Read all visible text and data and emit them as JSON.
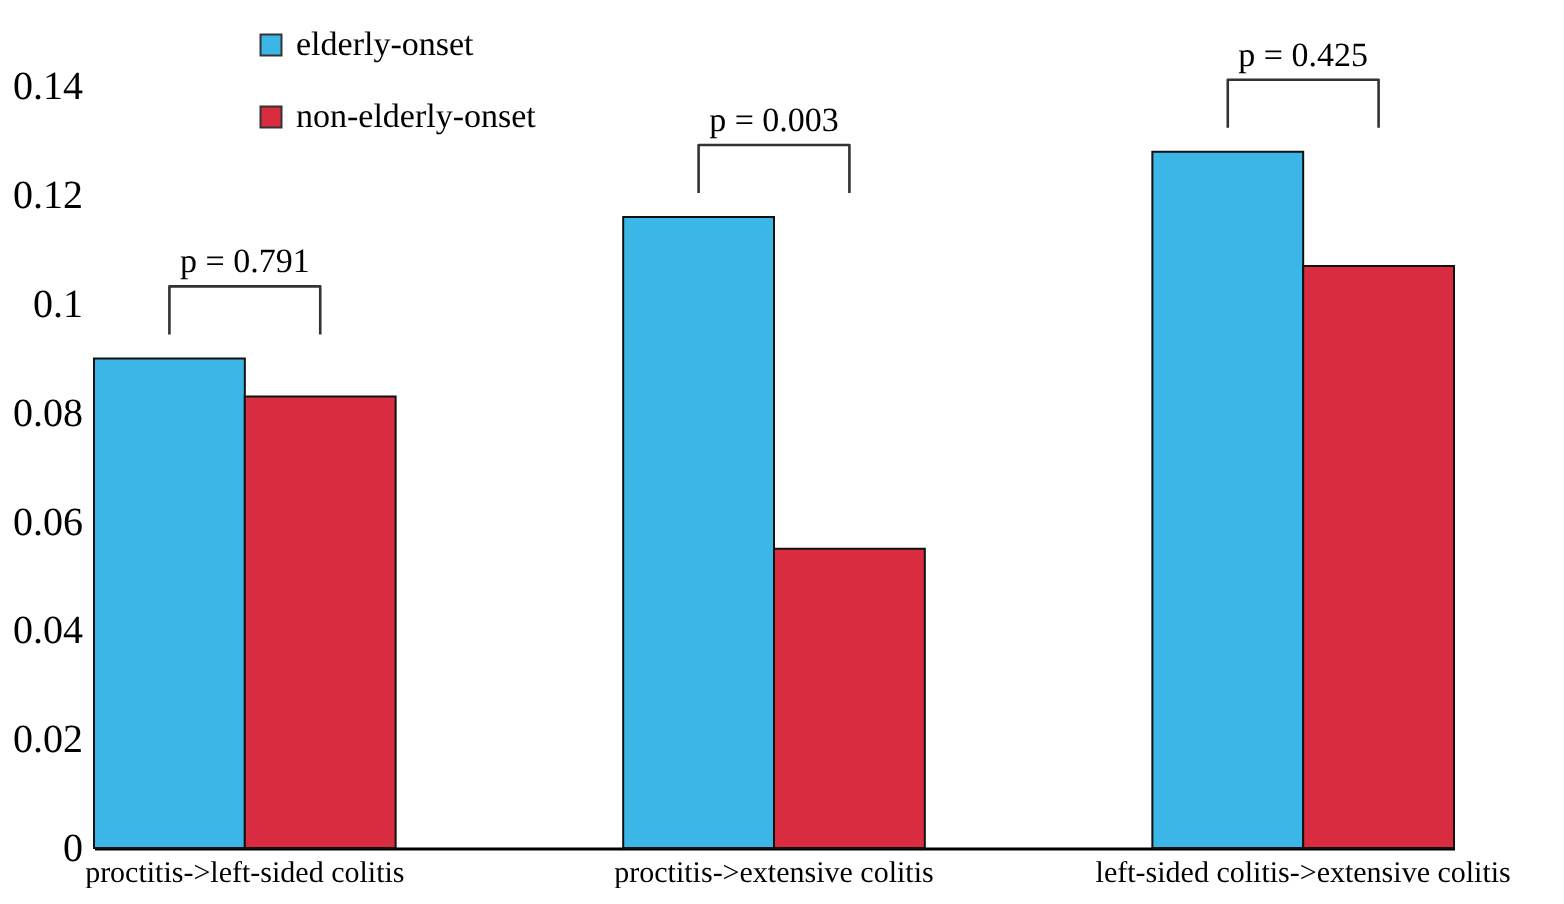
{
  "chart_data": {
    "type": "bar",
    "categories": [
      "proctitis->left-sided colitis",
      "proctitis->extensive colitis",
      "left-sided colitis->extensive colitis"
    ],
    "series": [
      {
        "name": "elderly-onset",
        "color": "#3bb6e6",
        "values": [
          0.09,
          0.116,
          0.128
        ]
      },
      {
        "name": "non-elderly-onset",
        "color": "#da2c40",
        "values": [
          0.083,
          0.055,
          0.107
        ]
      }
    ],
    "ylim": [
      0,
      0.15
    ],
    "yticks": [
      0,
      0.02,
      0.04,
      0.06,
      0.08,
      0.1,
      0.12,
      0.14
    ],
    "annotations": [
      "p = 0.791",
      "p = 0.003",
      "p = 0.425"
    ],
    "grid": false,
    "legend": "top left"
  }
}
